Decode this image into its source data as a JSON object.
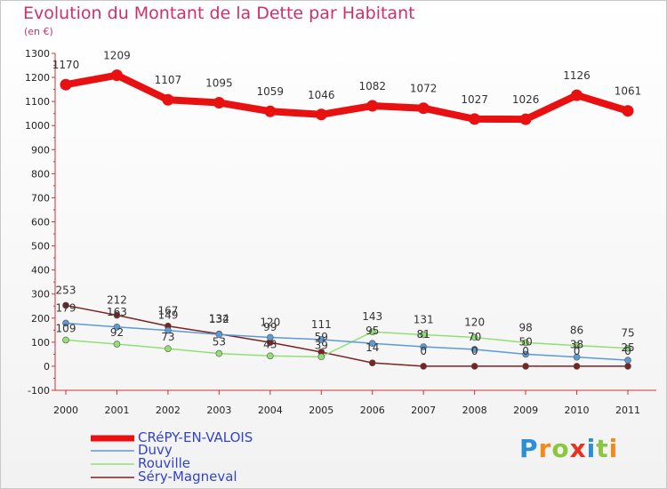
{
  "title": "Evolution du Montant de la Dette par Habitant",
  "subtitle": "(en €)",
  "logo": "Proxiti",
  "chart_data": {
    "type": "line",
    "x": [
      "2000",
      "2001",
      "2002",
      "2003",
      "2004",
      "2005",
      "2006",
      "2007",
      "2008",
      "2009",
      "2010",
      "2011"
    ],
    "ylim": [
      -100,
      1300
    ],
    "yticks": [
      -100,
      0,
      100,
      200,
      300,
      400,
      500,
      600,
      700,
      800,
      900,
      1000,
      1100,
      1200,
      1300
    ],
    "grid": false,
    "legend_position": "bottom-left",
    "series": [
      {
        "name": "CRéPY-EN-VALOIS",
        "color": "#e81010",
        "values": [
          1170,
          1209,
          1107,
          1095,
          1059,
          1046,
          1082,
          1072,
          1027,
          1026,
          1126,
          1061
        ]
      },
      {
        "name": "Duvy",
        "color": "#5b9ad6",
        "values": [
          179,
          163,
          149,
          132,
          120,
          111,
          95,
          81,
          70,
          50,
          38,
          25
        ]
      },
      {
        "name": "Rouville",
        "color": "#92e074",
        "values": [
          109,
          92,
          73,
          53,
          43,
          39,
          143,
          131,
          120,
          98,
          86,
          75
        ]
      },
      {
        "name": "Séry-Magneval",
        "color": "#7b2222",
        "values": [
          253,
          212,
          167,
          134,
          99,
          59,
          14,
          0,
          0,
          0,
          0,
          0
        ]
      }
    ]
  }
}
